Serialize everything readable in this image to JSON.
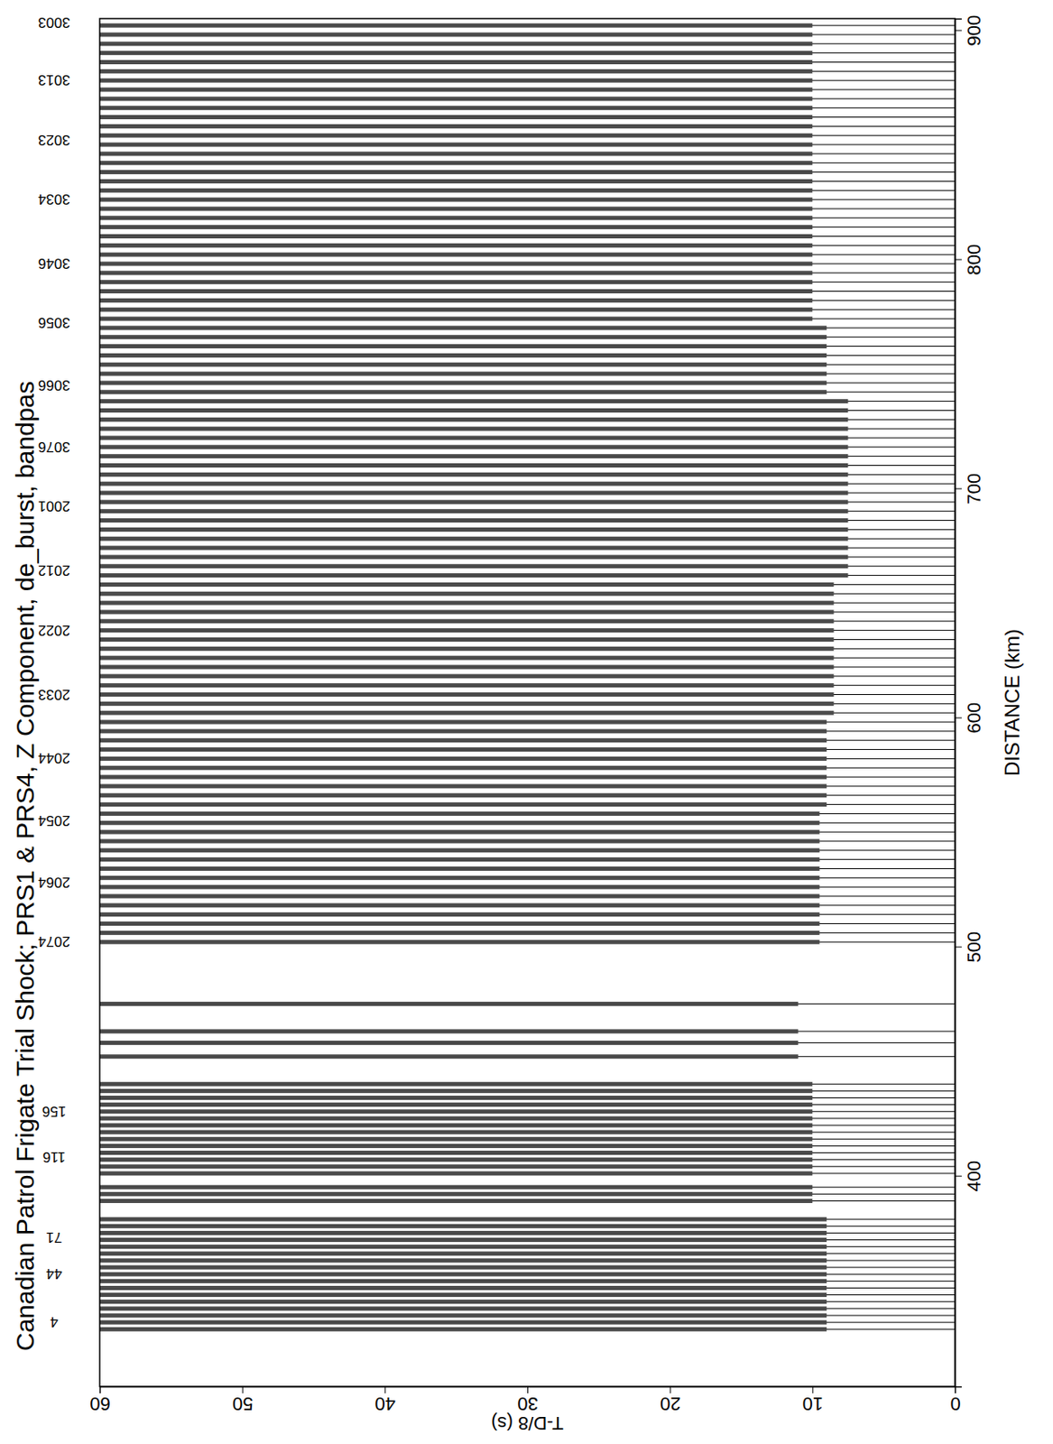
{
  "chart_data": {
    "type": "record_section",
    "title": "Canadian Patrol Frigate Trial Shock; PRS1 & PRS4, Z Component, de_burst, bandpas",
    "x_label": "T-D/8 (s)",
    "y_label": "DISTANCE (km)",
    "xlim": [
      60,
      0
    ],
    "xticks": [
      0,
      10,
      20,
      30,
      40,
      50,
      60
    ],
    "ylim": [
      308,
      905
    ],
    "yticks": [
      400,
      500,
      600,
      700,
      800,
      900
    ],
    "traces": {
      "distance": [
        333,
        336,
        339,
        342,
        345,
        348,
        351,
        354,
        357,
        360,
        363,
        366,
        369,
        372,
        375,
        378,
        381,
        389,
        392,
        395,
        401,
        404,
        407,
        410,
        413,
        416,
        419,
        422,
        425,
        428,
        431,
        434,
        437,
        440,
        452,
        458,
        463,
        475,
        502,
        506,
        510,
        514,
        518,
        522,
        526,
        530,
        534,
        538,
        542,
        546,
        550,
        554,
        558,
        562,
        566,
        570,
        574,
        578,
        582,
        586,
        590,
        594,
        598,
        602,
        606,
        610,
        614,
        618,
        622,
        626,
        630,
        634,
        638,
        642,
        646,
        650,
        654,
        658,
        662,
        666,
        670,
        674,
        678,
        682,
        686,
        690,
        694,
        698,
        702,
        706,
        710,
        714,
        718,
        722,
        726,
        730,
        734,
        738,
        742,
        746,
        750,
        754,
        758,
        762,
        766,
        770,
        774,
        778,
        782,
        786,
        790,
        794,
        798,
        802,
        806,
        810,
        814,
        818,
        822,
        826,
        830,
        834,
        838,
        842,
        846,
        850,
        854,
        858,
        862,
        866,
        870,
        874,
        878,
        882,
        886,
        890,
        894,
        898,
        902
      ],
      "onset": [
        9,
        9,
        9,
        9,
        9,
        9,
        9,
        9,
        9,
        9,
        9,
        9,
        9,
        9,
        9,
        9,
        9,
        10,
        10,
        10,
        10,
        10,
        10,
        10,
        10,
        10,
        10,
        10,
        10,
        10,
        10,
        10,
        10,
        10,
        11,
        11,
        11,
        11,
        9.5,
        9.5,
        9.5,
        9.5,
        9.5,
        9.5,
        9.5,
        9.5,
        9.5,
        9.5,
        9.5,
        9.5,
        9.5,
        9.5,
        9.5,
        9,
        9,
        9,
        9,
        9,
        9,
        9,
        9,
        9,
        9,
        8.5,
        8.5,
        8.5,
        8.5,
        8.5,
        8.5,
        8.5,
        8.5,
        8.5,
        8.5,
        8.5,
        8.5,
        8.5,
        8.5,
        8.5,
        7.5,
        7.5,
        7.5,
        7.5,
        7.5,
        7.5,
        7.5,
        7.5,
        7.5,
        7.5,
        7.5,
        7.5,
        7.5,
        7.5,
        7.5,
        7.5,
        7.5,
        7.5,
        7.5,
        7.5,
        9,
        9,
        9,
        9,
        9,
        9,
        9,
        9,
        10,
        10,
        10,
        10,
        10,
        10,
        10,
        10,
        10,
        10,
        10,
        10,
        10,
        10,
        10,
        10,
        10,
        10,
        10,
        10,
        10,
        10,
        10,
        10,
        10,
        10,
        10,
        10,
        10,
        10,
        10,
        10,
        10
      ]
    },
    "station_labels": {
      "labels": [
        "4",
        "44",
        "71",
        "116",
        "156",
        "2074",
        "2064",
        "2054",
        "2044",
        "2033",
        "2022",
        "2012",
        "2001",
        "3076",
        "3066",
        "3056",
        "3046",
        "3034",
        "3023",
        "3013",
        "3003"
      ],
      "distance": [
        336,
        357,
        373,
        408,
        428,
        502,
        528,
        555,
        582,
        610,
        638,
        664,
        692,
        718,
        745,
        772,
        798,
        826,
        852,
        878,
        903
      ]
    }
  }
}
